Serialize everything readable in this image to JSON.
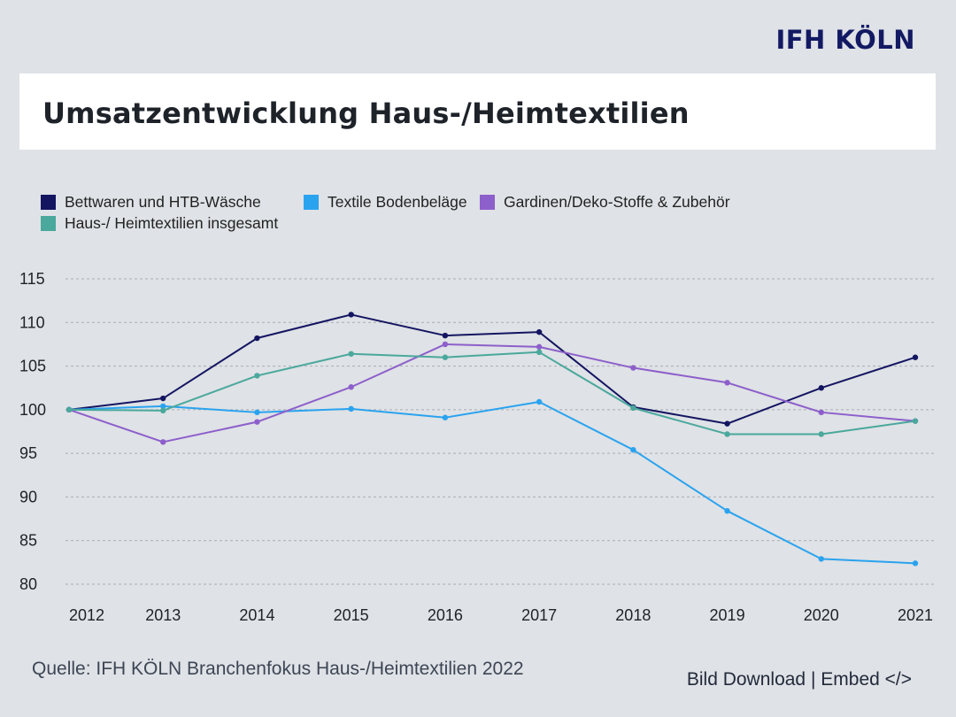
{
  "brand": {
    "logo_text": "IFH KÖLN"
  },
  "header": {
    "title": "Umsatzentwicklung Haus-/Heimtextilien"
  },
  "chart_data": {
    "type": "line",
    "title": "Umsatzentwicklung Haus-/Heimtextilien",
    "xlabel": "",
    "ylabel": "",
    "categories": [
      "2012",
      "2013",
      "2014",
      "2015",
      "2016",
      "2017",
      "2018",
      "2019",
      "2020",
      "2021"
    ],
    "ylim": [
      80,
      115
    ],
    "yticks": [
      80,
      85,
      90,
      95,
      100,
      105,
      110,
      115
    ],
    "grid": true,
    "legend_position": "top-left",
    "series": [
      {
        "name": "Bettwaren und HTB-Wäsche",
        "color": "#141561",
        "values": [
          100,
          101.3,
          108.2,
          110.9,
          108.5,
          108.9,
          100.3,
          98.4,
          102.5,
          106.0
        ]
      },
      {
        "name": "Textile Bodenbeläge",
        "color": "#2aa3ef",
        "values": [
          100,
          100.4,
          99.7,
          100.1,
          99.1,
          100.9,
          95.4,
          88.4,
          82.9,
          82.4
        ]
      },
      {
        "name": "Gardinen/Deko-Stoffe & Zubehör",
        "color": "#8d5fcb",
        "values": [
          100,
          96.3,
          98.6,
          102.6,
          107.5,
          107.2,
          104.8,
          103.1,
          99.7,
          98.7
        ]
      },
      {
        "name": "Haus-/ Heimtextilien insgesamt",
        "color": "#4aa89c",
        "values": [
          100,
          99.9,
          103.9,
          106.4,
          106.0,
          106.6,
          100.2,
          97.2,
          97.2,
          98.7
        ]
      }
    ]
  },
  "footer": {
    "source": "Quelle: IFH KÖLN Branchenfokus Haus-/Heimtextilien 2022",
    "download_label": "Bild Download",
    "separator": "|",
    "embed_label": "Embed </>"
  }
}
